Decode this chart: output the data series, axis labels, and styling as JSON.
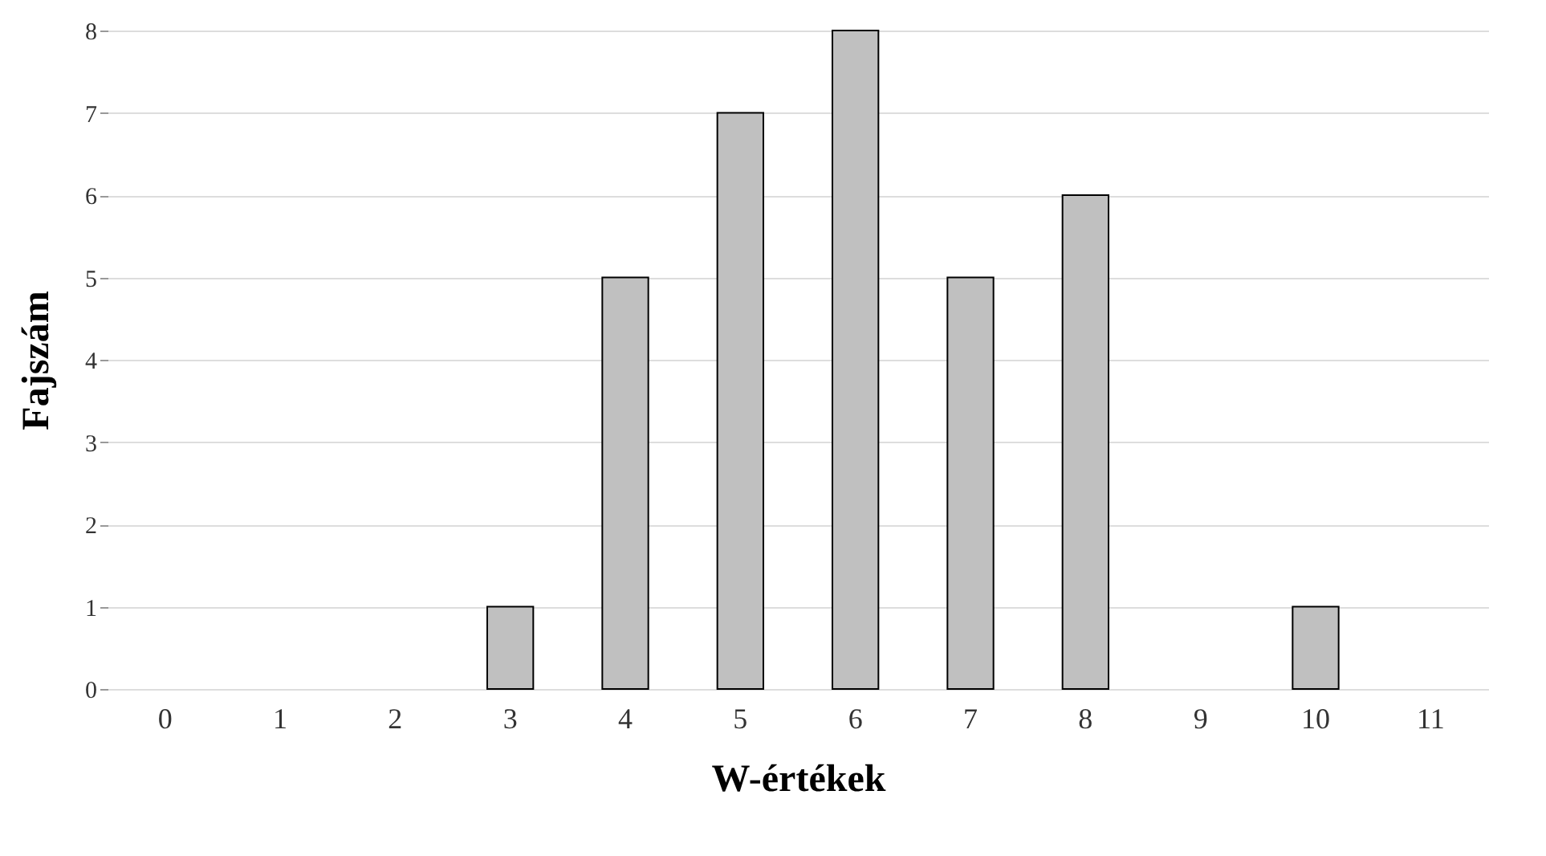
{
  "chart_data": {
    "type": "bar",
    "xlabel": "W-értékek",
    "ylabel": "Fajszám",
    "categories": [
      "0",
      "1",
      "2",
      "3",
      "4",
      "5",
      "6",
      "7",
      "8",
      "9",
      "10",
      "11"
    ],
    "values": [
      0,
      0,
      0,
      1,
      5,
      7,
      8,
      5,
      6,
      0,
      1,
      0
    ],
    "color": "#c0c0c0",
    "ylim": [
      0,
      8
    ],
    "yticks": [
      0,
      1,
      2,
      3,
      4,
      5,
      6,
      7,
      8
    ],
    "grid": "y"
  }
}
